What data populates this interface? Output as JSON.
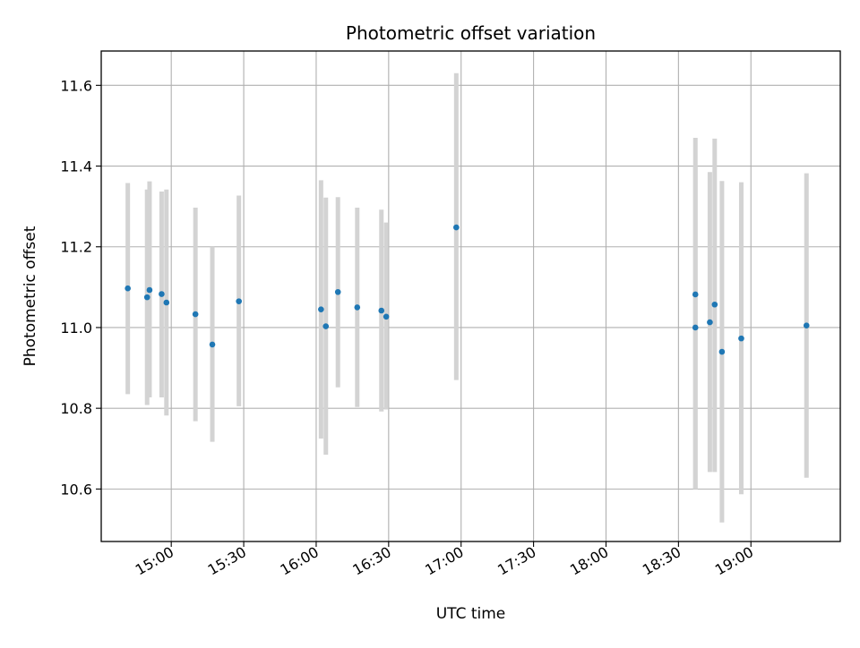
{
  "chart_data": {
    "type": "scatter",
    "title": "Photometric offset variation",
    "xlabel": "UTC time",
    "ylabel": "Photometric offset",
    "xlim": [
      "14:31",
      "19:37"
    ],
    "ylim": [
      10.47,
      11.685
    ],
    "x_ticks": [
      "15:00",
      "15:30",
      "16:00",
      "16:30",
      "17:00",
      "17:30",
      "18:00",
      "18:30",
      "19:00"
    ],
    "y_ticks": [
      10.6,
      10.8,
      11.0,
      11.2,
      11.4,
      11.6
    ],
    "y_tick_labels": [
      "10.6",
      "10.8",
      "11.0",
      "11.2",
      "11.4",
      "11.6"
    ],
    "grid": true,
    "marker_color": "#1f77b4",
    "errorbar_color": "#d3d3d3",
    "points": [
      {
        "x": "14:42",
        "y": 11.097,
        "ylow": 10.835,
        "yhigh": 11.358
      },
      {
        "x": "14:50",
        "y": 11.075,
        "ylow": 10.808,
        "yhigh": 11.342
      },
      {
        "x": "14:51",
        "y": 11.093,
        "ylow": 10.827,
        "yhigh": 11.362
      },
      {
        "x": "14:56",
        "y": 11.083,
        "ylow": 10.827,
        "yhigh": 11.337
      },
      {
        "x": "14:58",
        "y": 11.062,
        "ylow": 10.782,
        "yhigh": 11.342
      },
      {
        "x": "15:10",
        "y": 11.033,
        "ylow": 10.768,
        "yhigh": 11.297
      },
      {
        "x": "15:17",
        "y": 10.958,
        "ylow": 10.717,
        "yhigh": 11.2
      },
      {
        "x": "15:28",
        "y": 11.065,
        "ylow": 10.805,
        "yhigh": 11.327
      },
      {
        "x": "16:02",
        "y": 11.045,
        "ylow": 10.725,
        "yhigh": 11.365
      },
      {
        "x": "16:04",
        "y": 11.003,
        "ylow": 10.685,
        "yhigh": 11.322
      },
      {
        "x": "16:09",
        "y": 11.088,
        "ylow": 10.852,
        "yhigh": 11.323
      },
      {
        "x": "16:17",
        "y": 11.05,
        "ylow": 10.803,
        "yhigh": 11.297
      },
      {
        "x": "16:27",
        "y": 11.042,
        "ylow": 10.792,
        "yhigh": 11.292
      },
      {
        "x": "16:29",
        "y": 11.027,
        "ylow": 10.797,
        "yhigh": 11.26
      },
      {
        "x": "16:58",
        "y": 11.248,
        "ylow": 10.87,
        "yhigh": 11.63
      },
      {
        "x": "18:37",
        "y": 11.082,
        "ylow": 10.6,
        "yhigh": 11.47
      },
      {
        "x": "18:37",
        "y": 11.0,
        "ylow": 10.6,
        "yhigh": 11.4
      },
      {
        "x": "18:43",
        "y": 11.013,
        "ylow": 10.642,
        "yhigh": 11.385
      },
      {
        "x": "18:45",
        "y": 11.057,
        "ylow": 10.642,
        "yhigh": 11.468
      },
      {
        "x": "18:48",
        "y": 10.94,
        "ylow": 10.517,
        "yhigh": 11.363
      },
      {
        "x": "18:56",
        "y": 10.973,
        "ylow": 10.587,
        "yhigh": 11.36
      },
      {
        "x": "19:23",
        "y": 11.005,
        "ylow": 10.628,
        "yhigh": 11.382
      }
    ]
  }
}
